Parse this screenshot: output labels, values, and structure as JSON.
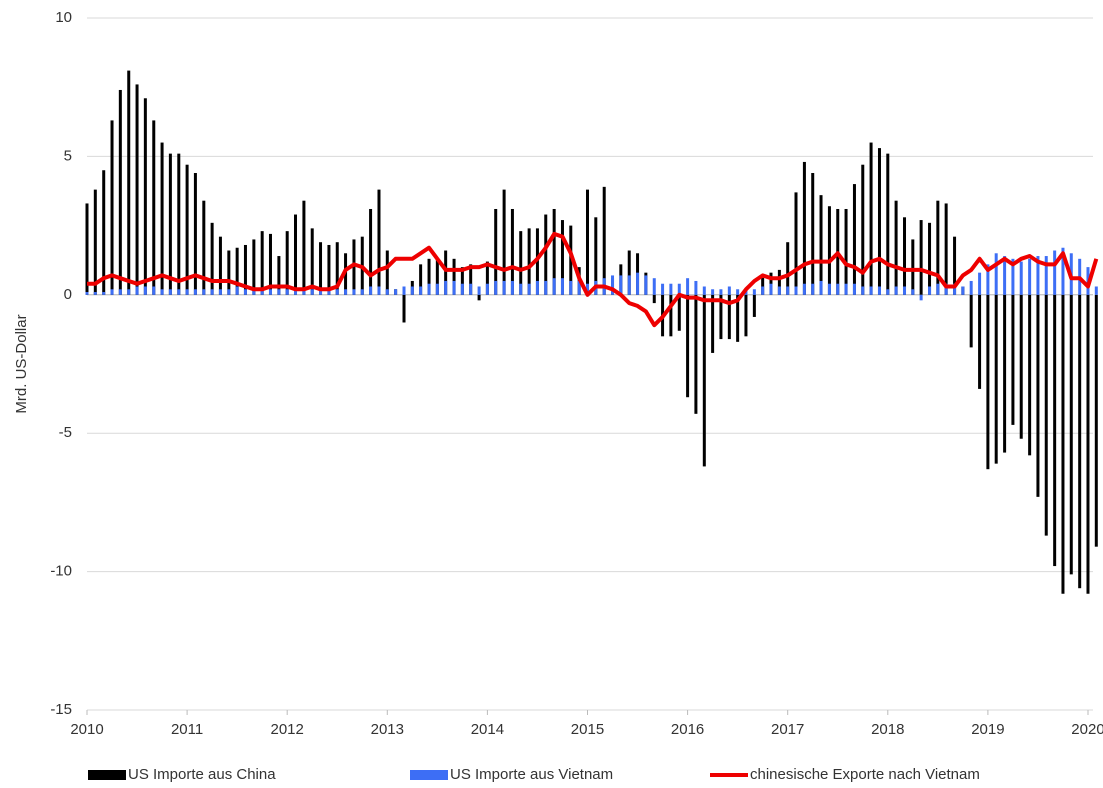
{
  "chart_data": {
    "type": "bar",
    "ylabel": "Mrd. US-Dollar",
    "xlim": [
      2010,
      2020.1
    ],
    "xticks": [
      2010,
      2011,
      2012,
      2013,
      2014,
      2015,
      2016,
      2017,
      2018,
      2019,
      2020
    ],
    "ylim": [
      -15,
      10
    ],
    "yticks": [
      -15,
      -10,
      -5,
      0,
      5,
      10
    ],
    "grid": true,
    "legend": "bottom",
    "x": [
      2010,
      2010.083,
      2010.167,
      2010.25,
      2010.333,
      2010.417,
      2010.5,
      2010.583,
      2010.667,
      2010.75,
      2010.833,
      2010.917,
      2011,
      2011.083,
      2011.167,
      2011.25,
      2011.333,
      2011.417,
      2011.5,
      2011.583,
      2011.667,
      2011.75,
      2011.833,
      2011.917,
      2012,
      2012.083,
      2012.167,
      2012.25,
      2012.333,
      2012.417,
      2012.5,
      2012.583,
      2012.667,
      2012.75,
      2012.833,
      2012.917,
      2013,
      2013.083,
      2013.167,
      2013.25,
      2013.333,
      2013.417,
      2013.5,
      2013.583,
      2013.667,
      2013.75,
      2013.833,
      2013.917,
      2014,
      2014.083,
      2014.167,
      2014.25,
      2014.333,
      2014.417,
      2014.5,
      2014.583,
      2014.667,
      2014.75,
      2014.833,
      2014.917,
      2015,
      2015.083,
      2015.167,
      2015.25,
      2015.333,
      2015.417,
      2015.5,
      2015.583,
      2015.667,
      2015.75,
      2015.833,
      2015.917,
      2016,
      2016.083,
      2016.167,
      2016.25,
      2016.333,
      2016.417,
      2016.5,
      2016.583,
      2016.667,
      2016.75,
      2016.833,
      2016.917,
      2017,
      2017.083,
      2017.167,
      2017.25,
      2017.333,
      2017.417,
      2017.5,
      2017.583,
      2017.667,
      2017.75,
      2017.833,
      2017.917,
      2018,
      2018.083,
      2018.167,
      2018.25,
      2018.333,
      2018.417,
      2018.5,
      2018.583,
      2018.667,
      2018.75,
      2018.833,
      2018.917,
      2019,
      2019.083,
      2019.167,
      2019.25,
      2019.333,
      2019.417,
      2019.5,
      2019.583,
      2019.667,
      2019.75,
      2019.833,
      2019.917,
      2020,
      2020.083
    ],
    "series": [
      {
        "name": "US Importe aus China",
        "color": "#000000",
        "type": "bar",
        "values": [
          3.3,
          3.8,
          4.5,
          6.3,
          7.4,
          8.1,
          7.6,
          7.1,
          6.3,
          5.5,
          5.1,
          5.1,
          4.7,
          4.4,
          3.4,
          2.6,
          2.1,
          1.6,
          1.7,
          1.8,
          2.0,
          2.3,
          2.2,
          1.4,
          2.3,
          2.9,
          3.4,
          2.4,
          1.9,
          1.8,
          1.9,
          1.5,
          2.0,
          2.1,
          3.1,
          3.8,
          1.6,
          0.2,
          -1.0,
          0.5,
          1.1,
          1.3,
          1.3,
          1.6,
          1.3,
          1.0,
          1.1,
          -0.2,
          1.2,
          3.1,
          3.8,
          3.1,
          2.3,
          2.4,
          2.4,
          2.9,
          3.1,
          2.7,
          2.5,
          1.0,
          3.8,
          2.8,
          3.9,
          0.6,
          1.1,
          1.6,
          1.5,
          0.8,
          -0.3,
          -1.5,
          -1.5,
          -1.3,
          -3.7,
          -4.3,
          -6.2,
          -2.1,
          -1.6,
          -1.6,
          -1.7,
          -1.5,
          -0.8,
          0.7,
          0.8,
          0.9,
          1.9,
          3.7,
          4.8,
          4.4,
          3.6,
          3.2,
          3.1,
          3.1,
          4.0,
          4.7,
          5.5,
          5.3,
          5.1,
          3.4,
          2.8,
          2.0,
          2.7,
          2.6,
          3.4,
          3.3,
          2.1,
          0.3,
          -1.9,
          -3.4,
          -6.3,
          -6.1,
          -5.7,
          -4.7,
          -5.2,
          -5.8,
          -7.3,
          -8.7,
          -9.8,
          -10.8,
          -10.1,
          -10.6,
          -10.8,
          -9.1
        ]
      },
      {
        "name": "US Importe aus Vietnam",
        "color": "#3d6ef5",
        "type": "bar",
        "values": [
          0.1,
          0.1,
          0.1,
          0.2,
          0.2,
          0.2,
          0.3,
          0.3,
          0.3,
          0.2,
          0.2,
          0.2,
          0.2,
          0.2,
          0.2,
          0.2,
          0.2,
          0.2,
          0.3,
          0.2,
          0.2,
          0.2,
          0.2,
          0.2,
          0.2,
          0.2,
          0.2,
          0.2,
          0.2,
          0.2,
          0.2,
          0.2,
          0.2,
          0.2,
          0.3,
          0.3,
          0.2,
          0.2,
          0.3,
          0.3,
          0.3,
          0.4,
          0.4,
          0.5,
          0.5,
          0.4,
          0.4,
          0.3,
          0.4,
          0.5,
          0.5,
          0.5,
          0.4,
          0.4,
          0.5,
          0.5,
          0.6,
          0.6,
          0.5,
          0.5,
          0.4,
          0.5,
          0.6,
          0.7,
          0.7,
          0.7,
          0.8,
          0.7,
          0.6,
          0.4,
          0.4,
          0.4,
          0.6,
          0.5,
          0.3,
          0.2,
          0.2,
          0.3,
          0.2,
          0.2,
          0.2,
          0.3,
          0.4,
          0.3,
          0.3,
          0.3,
          0.4,
          0.4,
          0.5,
          0.4,
          0.4,
          0.4,
          0.4,
          0.3,
          0.3,
          0.3,
          0.2,
          0.3,
          0.3,
          0.2,
          -0.2,
          0.3,
          0.4,
          0.4,
          0.4,
          0.3,
          0.5,
          0.8,
          1.1,
          1.5,
          1.4,
          1.3,
          1.2,
          1.3,
          1.4,
          1.4,
          1.6,
          1.7,
          1.5,
          1.3,
          1.0,
          0.3
        ]
      },
      {
        "name": "chinesische Exporte nach Vietnam",
        "color": "#ee0000",
        "type": "line",
        "values": [
          0.4,
          0.4,
          0.6,
          0.7,
          0.6,
          0.5,
          0.4,
          0.5,
          0.6,
          0.7,
          0.6,
          0.5,
          0.6,
          0.7,
          0.6,
          0.5,
          0.5,
          0.5,
          0.4,
          0.3,
          0.2,
          0.2,
          0.3,
          0.3,
          0.3,
          0.2,
          0.2,
          0.3,
          0.2,
          0.2,
          0.3,
          0.9,
          1.1,
          1.0,
          0.7,
          0.9,
          1.0,
          1.3,
          1.3,
          1.3,
          1.5,
          1.7,
          1.3,
          0.9,
          0.9,
          0.9,
          1.0,
          1.0,
          1.1,
          1.0,
          0.9,
          1.0,
          0.9,
          1.0,
          1.3,
          1.7,
          2.2,
          2.1,
          1.5,
          0.6,
          0.0,
          0.3,
          0.3,
          0.2,
          0.0,
          -0.3,
          -0.4,
          -0.6,
          -1.1,
          -0.8,
          -0.4,
          0.0,
          -0.1,
          -0.1,
          -0.2,
          -0.2,
          -0.2,
          -0.3,
          -0.2,
          0.2,
          0.5,
          0.7,
          0.6,
          0.6,
          0.7,
          0.9,
          1.1,
          1.2,
          1.2,
          1.2,
          1.5,
          1.1,
          1.0,
          0.8,
          1.2,
          1.3,
          1.1,
          1.0,
          0.9,
          0.9,
          0.9,
          0.8,
          0.7,
          0.3,
          0.3,
          0.7,
          0.9,
          1.3,
          0.9,
          1.1,
          1.3,
          1.1,
          1.3,
          1.4,
          1.2,
          1.1,
          1.1,
          1.5,
          0.6,
          0.6,
          0.3,
          1.3
        ]
      }
    ]
  }
}
